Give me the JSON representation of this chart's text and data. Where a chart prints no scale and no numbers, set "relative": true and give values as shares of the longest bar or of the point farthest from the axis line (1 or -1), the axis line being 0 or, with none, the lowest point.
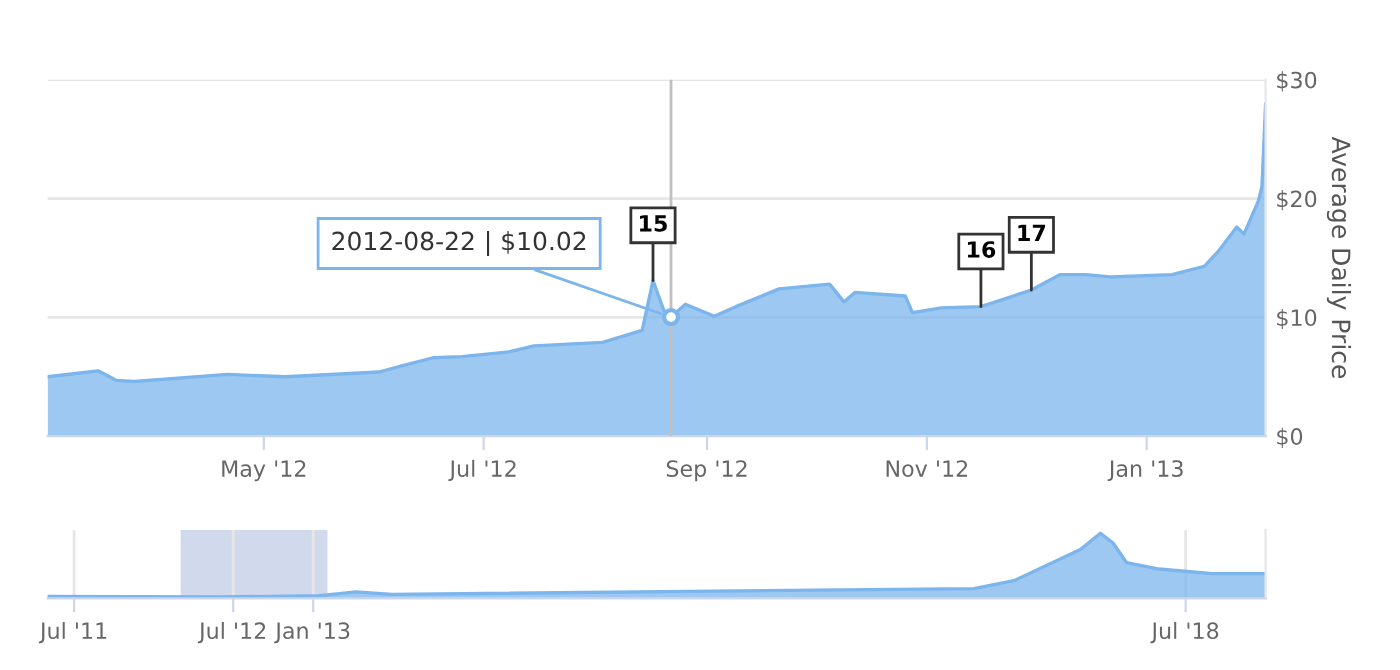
{
  "chart_data": [
    {
      "type": "area",
      "ylabel": "Average Daily Price",
      "x": [
        "2012-03-02",
        "2012-03-16",
        "2012-03-21",
        "2012-03-26",
        "2012-04-21",
        "2012-05-07",
        "2012-06-02",
        "2012-06-08",
        "2012-06-17",
        "2012-06-25",
        "2012-07-08",
        "2012-07-15",
        "2012-08-03",
        "2012-08-14",
        "2012-08-17",
        "2012-08-20",
        "2012-08-22",
        "2012-08-26",
        "2012-09-03",
        "2012-09-09",
        "2012-09-21",
        "2012-10-05",
        "2012-10-09",
        "2012-10-12",
        "2012-10-26",
        "2012-10-28",
        "2012-11-05",
        "2012-11-16",
        "2012-11-30",
        "2012-12-08",
        "2012-12-15",
        "2012-12-22",
        "2013-01-08",
        "2013-01-17",
        "2013-01-21",
        "2013-01-26",
        "2013-01-28",
        "2013-02-01",
        "2013-02-02",
        "2013-02-03"
      ],
      "series": [
        {
          "color": "#7cb5ec",
          "values": [
            5.0,
            5.5,
            4.7,
            4.6,
            5.2,
            5.0,
            5.4,
            5.9,
            6.6,
            6.7,
            7.1,
            7.6,
            7.9,
            8.9,
            13.1,
            10.6,
            10.02,
            11.1,
            10.1,
            10.9,
            12.4,
            12.8,
            11.3,
            12.1,
            11.8,
            10.4,
            10.8,
            10.9,
            12.3,
            13.6,
            13.6,
            13.4,
            13.6,
            14.3,
            15.6,
            17.6,
            17.0,
            19.8,
            21.0,
            28.0
          ]
        }
      ],
      "xlim": [
        "2012-03-02",
        "2013-02-03"
      ],
      "xticks": [
        {
          "value": "2012-05-01",
          "label": "May '12"
        },
        {
          "value": "2012-07-01",
          "label": "Jul '12"
        },
        {
          "value": "2012-09-01",
          "label": "Sep '12"
        },
        {
          "value": "2012-11-01",
          "label": "Nov '12"
        },
        {
          "value": "2013-01-01",
          "label": "Jan '13"
        }
      ],
      "ylim": [
        0,
        30
      ],
      "yticks": [
        {
          "value": 0,
          "label": "$0"
        },
        {
          "value": 10,
          "label": "$10"
        },
        {
          "value": 20,
          "label": "$20"
        },
        {
          "value": 30,
          "label": "$30"
        }
      ],
      "grid": "y",
      "legend": false,
      "ref_lines": [
        {
          "axis": "x",
          "value": "2012-08-22",
          "label": null,
          "color": "#c0c0c0"
        }
      ],
      "annotations": [
        {
          "text": "2012-08-22 | $10.02",
          "x": "2012-08-22",
          "y": 10.02
        },
        {
          "text": "15",
          "x": "2012-08-17",
          "y": 13.1
        },
        {
          "text": "16",
          "x": "2012-11-16",
          "y": 10.9
        },
        {
          "text": "17",
          "x": "2012-11-30",
          "y": 12.3
        }
      ]
    },
    {
      "type": "area",
      "relative": true,
      "x": [
        "2011-05-01",
        "2012-06-01",
        "2013-01-15",
        "2013-04-10",
        "2013-07-01",
        "2017-03-01",
        "2017-06-01",
        "2017-11-01",
        "2017-12-17",
        "2018-01-15",
        "2018-02-15",
        "2018-05-01",
        "2018-09-01",
        "2019-01-01"
      ],
      "series": [
        {
          "color": "#7cb5ec",
          "values": [
            0.03,
            0.02,
            0.04,
            0.1,
            0.06,
            0.15,
            0.27,
            0.75,
            1.0,
            0.85,
            0.55,
            0.45,
            0.38,
            0.38
          ]
        }
      ],
      "xlim": [
        "2011-05-01",
        "2019-01-01"
      ],
      "xticks": [
        {
          "value": "2011-07-01",
          "label": "Jul '11"
        },
        {
          "value": "2012-07-01",
          "label": "Jul '12"
        },
        {
          "value": "2013-01-01",
          "label": "Jan '13"
        },
        {
          "value": "2018-07-01",
          "label": "Jul '18"
        }
      ],
      "grid": "x",
      "legend": false,
      "tick_labels": "x",
      "bands": [
        {
          "axis": "x",
          "from": "2012-03-02",
          "to": "2013-02-03",
          "label": null,
          "color": "#ccd6eb"
        }
      ]
    }
  ]
}
